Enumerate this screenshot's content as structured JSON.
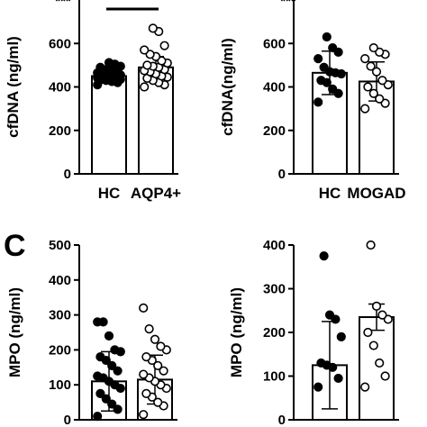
{
  "panel_labels": {
    "c": "C"
  },
  "sig_marks": [
    "***",
    "***"
  ],
  "colors": {
    "ink": "#000000",
    "open": "#ffffff"
  },
  "chart_data": [
    {
      "type": "bar",
      "ylabel": "cfDNA (ng/ml)",
      "yticks": [
        0,
        200,
        400,
        600
      ],
      "ylim": [
        0,
        800
      ],
      "categories": [
        "HC",
        "AQP4+"
      ],
      "marker_style": [
        "filled",
        "open"
      ],
      "values": [
        450,
        490
      ],
      "sd": [
        25,
        50
      ],
      "points": [
        [
          410,
          420,
          425,
          430,
          432,
          435,
          438,
          440,
          440,
          442,
          445,
          448,
          450,
          452,
          455,
          458,
          460,
          462,
          465,
          470,
          475,
          480,
          490,
          495,
          505,
          512
        ],
        [
          400,
          410,
          420,
          430,
          440,
          445,
          450,
          460,
          470,
          475,
          480,
          490,
          495,
          500,
          510,
          520,
          540,
          550,
          570,
          590,
          655,
          670
        ]
      ],
      "significance_bar": true
    },
    {
      "type": "bar",
      "ylabel": "cfDNA(ng/ml)",
      "yticks": [
        0,
        200,
        400,
        600
      ],
      "ylim": [
        0,
        800
      ],
      "categories": [
        "HC",
        "MOGAD"
      ],
      "marker_style": [
        "filled",
        "open"
      ],
      "values": [
        465,
        425
      ],
      "sd": [
        100,
        90
      ],
      "points": [
        [
          330,
          370,
          390,
          420,
          430,
          460,
          465,
          470,
          490,
          530,
          560,
          580,
          630
        ],
        [
          300,
          325,
          345,
          370,
          400,
          410,
          430,
          470,
          495,
          530,
          550,
          560,
          580
        ]
      ],
      "significance_bar": false
    },
    {
      "type": "bar",
      "ylabel": "MPO (ng/ml)",
      "yticks": [
        0,
        100,
        200,
        300,
        400,
        500
      ],
      "ylim": [
        0,
        500
      ],
      "categories": [
        "HC",
        "AQP4+"
      ],
      "marker_style": [
        "filled",
        "open"
      ],
      "values": [
        110,
        115
      ],
      "sd": [
        85,
        70
      ],
      "points": [
        [
          10,
          30,
          45,
          60,
          75,
          90,
          100,
          110,
          120,
          125,
          140,
          155,
          170,
          180,
          195,
          200,
          240,
          280,
          280
        ],
        [
          15,
          40,
          50,
          65,
          75,
          90,
          100,
          110,
          120,
          130,
          140,
          155,
          170,
          180,
          200,
          210,
          230,
          260,
          320
        ]
      ],
      "significance_bar": false
    },
    {
      "type": "bar",
      "ylabel": "MPO (ng/ml)",
      "yticks": [
        0,
        100,
        200,
        300,
        400
      ],
      "ylim": [
        0,
        400
      ],
      "categories": [
        "HC",
        "AQP4+"
      ],
      "marker_style": [
        "filled",
        "open"
      ],
      "values": [
        125,
        235
      ],
      "sd": [
        100,
        30
      ],
      "points": [
        [
          75,
          95,
          120,
          125,
          130,
          190,
          230,
          240,
          375
        ],
        [
          75,
          100,
          130,
          170,
          200,
          230,
          240,
          260,
          400
        ]
      ],
      "significance_bar": false
    }
  ]
}
